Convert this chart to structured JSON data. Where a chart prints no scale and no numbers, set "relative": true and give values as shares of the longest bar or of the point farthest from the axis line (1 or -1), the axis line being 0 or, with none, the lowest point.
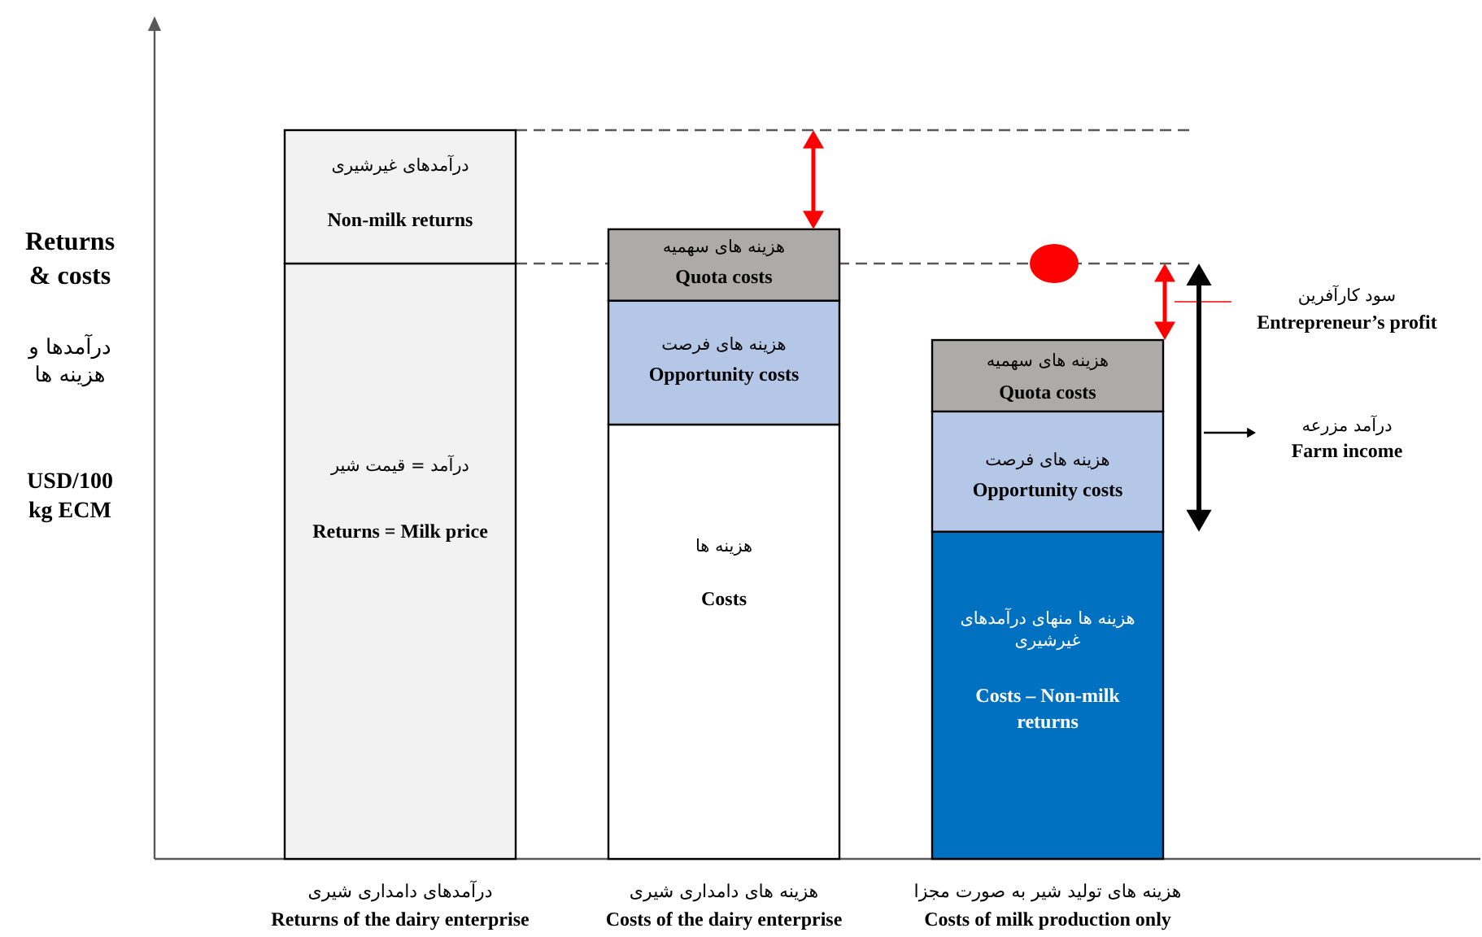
{
  "chart_data": {
    "type": "bar",
    "stacked": true,
    "relative": true,
    "ylabel": "Returns & costs",
    "categories": [
      "Returns of the dairy enterprise",
      "Costs of the dairy enterprise",
      "Costs of milk production only"
    ],
    "series": [
      {
        "values": [
          0.817,
          0.596,
          0.449
        ],
        "colors": [
          "#f2f2f2",
          "#ffffff",
          "#0070c0"
        ]
      },
      {
        "values": [
          0.183,
          0.17,
          0.165
        ],
        "colors": [
          "#f2f2f2",
          "#b4c7e7",
          "#b4c7e7"
        ]
      },
      {
        "values": [
          null,
          0.098,
          0.098
        ],
        "color": "#aeaaaa"
      }
    ],
    "ref_lines": [
      {
        "axis": "y",
        "value": 1,
        "color": "#595959",
        "line_style": "dashed"
      },
      {
        "axis": "y",
        "value": 0.817,
        "color": "#595959",
        "line_style": "dashed"
      }
    ],
    "annotations": [
      "درآمدها و هزینه ها",
      "USD/100 kg ECM",
      "درآمدهای دامداری شیری",
      "هزینه های دامداری شیری",
      "هزینه های تولید شیر به صورت مجزا",
      "درآمدهای غیرشیری",
      "Non-milk returns",
      "درآمد = قیمت شیر",
      "Returns = Milk price",
      "هزینه های سهمیه",
      "Quota costs",
      "هزینه های فرصت",
      "Opportunity costs",
      "هزینه ها",
      "Costs",
      "هزینه های سهمیه",
      "Quota costs",
      "هزینه های فرصت",
      "Opportunity costs",
      "هزینه ها منهای درآمدهای غیرشیری",
      "Costs – Non-milk returns",
      "سود کارآفرین",
      "Entrepreneur’s profit",
      "درآمد مزرعه",
      "Farm income"
    ]
  }
}
